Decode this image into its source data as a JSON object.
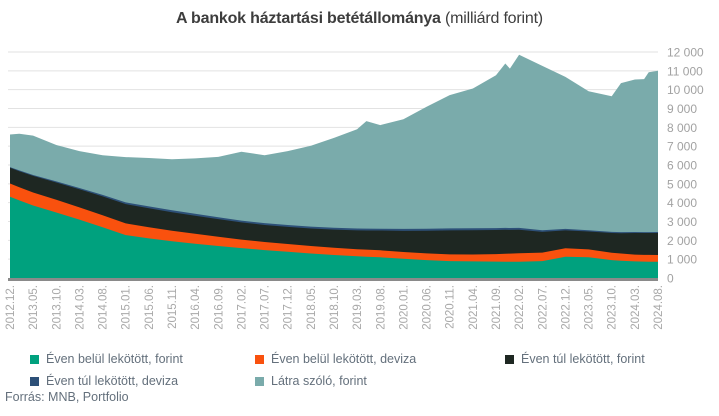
{
  "title": {
    "bold": "A bankok háztartási betétállománya",
    "normal": " (milliárd forint)"
  },
  "source": "Forrás: MNB, Portfolio",
  "colors": {
    "background": "#ffffff",
    "gridline": "#e2e2e2",
    "axis_line": "#8a8a8a",
    "axis_label": "#a2a2a2",
    "legend_text": "#64707c",
    "title_text": "#3d3d3d"
  },
  "chart_data": {
    "type": "area",
    "stacked": true,
    "title": "A bankok háztartási betétállománya (milliárd forint)",
    "ylabel": "",
    "xlabel": "",
    "ylim": [
      0,
      12000
    ],
    "grid": "horizontal",
    "legend_position": "bottom",
    "x_unit": "months since 2012.12",
    "x_range": [
      0,
      140
    ],
    "x_tick_step_months": 5,
    "x_tick_labels": [
      "2012.12.",
      "2013.05.",
      "2013.10.",
      "2014.03.",
      "2014.08.",
      "2015.01.",
      "2015.06.",
      "2015.11.",
      "2016.04.",
      "2016.09.",
      "2017.02.",
      "2017.07.",
      "2017.12.",
      "2018.05.",
      "2018.10.",
      "2019.03.",
      "2019.08.",
      "2020.01.",
      "2020.06.",
      "2020.11.",
      "2021.04.",
      "2021.09.",
      "2022.02.",
      "2022.07.",
      "2022.12.",
      "2023.05.",
      "2023.10.",
      "2024.03.",
      "2024.08."
    ],
    "y_ticks": [
      {
        "value": 0,
        "label": "0"
      },
      {
        "value": 1000,
        "label": "1 000"
      },
      {
        "value": 2000,
        "label": "2 000"
      },
      {
        "value": 3000,
        "label": "3 000"
      },
      {
        "value": 4000,
        "label": "4 000"
      },
      {
        "value": 5000,
        "label": "5 000"
      },
      {
        "value": 6000,
        "label": "6 000"
      },
      {
        "value": 7000,
        "label": "7 000"
      },
      {
        "value": 8000,
        "label": "8 000"
      },
      {
        "value": 9000,
        "label": "9 000"
      },
      {
        "value": 10000,
        "label": "10 000"
      },
      {
        "value": 11000,
        "label": "11 000"
      },
      {
        "value": 12000,
        "label": "12 000"
      }
    ],
    "sample_x": [
      0,
      2,
      5,
      10,
      15,
      20,
      25,
      30,
      35,
      40,
      45,
      50,
      55,
      60,
      65,
      70,
      75,
      77,
      80,
      85,
      90,
      95,
      100,
      105,
      107,
      108,
      110,
      115,
      120,
      125,
      130,
      132,
      135,
      137,
      138,
      140
    ],
    "series": [
      {
        "name": "Éven belül lekötött, forint",
        "color": "#00A17E",
        "values": [
          4310,
          4120,
          3850,
          3480,
          3100,
          2700,
          2280,
          2100,
          1950,
          1820,
          1700,
          1590,
          1480,
          1390,
          1300,
          1220,
          1150,
          1130,
          1100,
          1020,
          950,
          900,
          880,
          870,
          868,
          866,
          865,
          900,
          1130,
          1100,
          950,
          920,
          880,
          870,
          868,
          865
        ]
      },
      {
        "name": "Éven belül lekötött, deviza",
        "color": "#F9510E",
        "values": [
          710,
          700,
          690,
          670,
          650,
          635,
          620,
          590,
          560,
          530,
          490,
          450,
          430,
          415,
          400,
          390,
          380,
          378,
          370,
          360,
          355,
          355,
          370,
          400,
          420,
          430,
          445,
          450,
          445,
          420,
          390,
          380,
          360,
          357,
          356,
          355
        ]
      },
      {
        "name": "Éven túl lekötött, forint",
        "color": "#1E2722",
        "values": [
          830,
          850,
          880,
          920,
          960,
          1000,
          1025,
          1010,
          985,
          960,
          935,
          910,
          905,
          910,
          930,
          960,
          1000,
          1015,
          1050,
          1120,
          1200,
          1275,
          1290,
          1280,
          1270,
          1260,
          1250,
          1100,
          950,
          950,
          1050,
          1080,
          1150,
          1160,
          1165,
          1170
        ]
      },
      {
        "name": "Éven túl lekötött, deviza",
        "color": "#2D5078",
        "values": [
          40,
          45,
          50,
          60,
          70,
          80,
          90,
          100,
          100,
          100,
          100,
          100,
          100,
          100,
          100,
          100,
          100,
          100,
          100,
          105,
          105,
          105,
          100,
          100,
          100,
          100,
          100,
          90,
          80,
          70,
          60,
          55,
          50,
          50,
          50,
          50
        ]
      },
      {
        "name": "Látra szóló, forint",
        "color": "#7AABAB",
        "values": [
          1730,
          1945,
          2090,
          1930,
          1960,
          2105,
          2405,
          2570,
          2715,
          2940,
          3205,
          3650,
          3605,
          3925,
          4290,
          4770,
          5270,
          5707,
          5500,
          5825,
          6480,
          7075,
          7420,
          8120,
          8732,
          8464,
          9190,
          8720,
          8075,
          7380,
          7200,
          7915,
          8100,
          8123,
          8481,
          8560
        ]
      }
    ]
  }
}
